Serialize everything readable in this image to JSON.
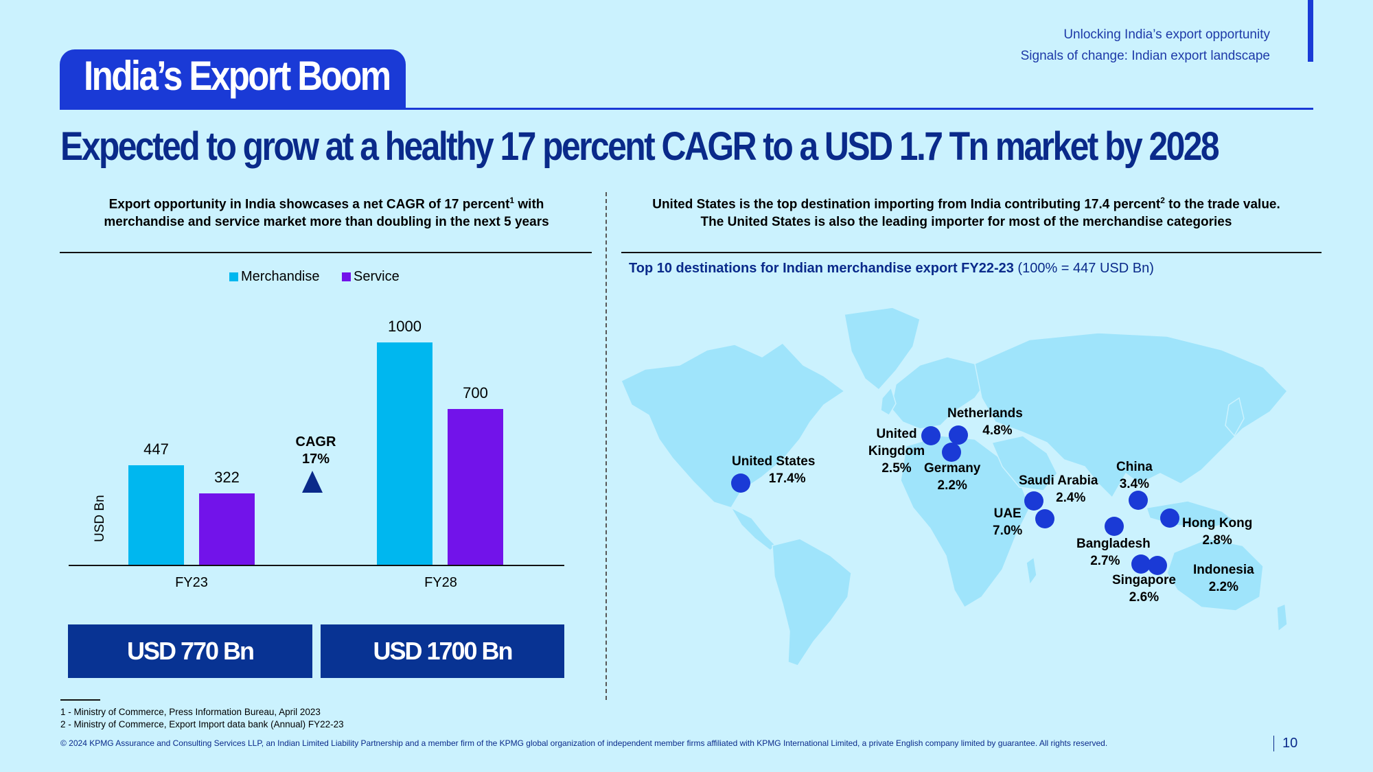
{
  "header": {
    "line1": "Unlocking India’s export opportunity",
    "line2": "Signals of change: Indian export landscape"
  },
  "title": "India’s Export Boom",
  "headline": "Expected to grow at a healthy 17 percent CAGR to a USD 1.7 Tn market by 2028",
  "left": {
    "subhead_a": "Export opportunity in India showcases a net CAGR of 17 percent",
    "subhead_a_sup": "1",
    "subhead_a_tail": " with",
    "subhead_b": "merchandise and service market more than doubling in the next 5 years",
    "cagr_label": "CAGR",
    "cagr_value": "17%",
    "totals": [
      "USD 770 Bn",
      "USD 1700 Bn"
    ]
  },
  "right": {
    "subhead_a": "United States is the top destination importing from India contributing 17.4 percent",
    "subhead_a_sup": "2",
    "subhead_a_tail": " to the trade value.",
    "subhead_b": "The United States is also the leading importer for most of the merchandise categories",
    "map_title_bold": "Top 10 destinations for Indian merchandise export FY22-23",
    "map_title_rest": " (100% = 447 USD Bn)",
    "destinations": [
      {
        "name": "United States",
        "share": "17.4%"
      },
      {
        "name": "United Kingdom",
        "share": "2.5%"
      },
      {
        "name": "Netherlands",
        "share": "4.8%"
      },
      {
        "name": "Germany",
        "share": "2.2%"
      },
      {
        "name": "Saudi Arabia",
        "share": "2.4%"
      },
      {
        "name": "UAE",
        "share": "7.0%"
      },
      {
        "name": "China",
        "share": "3.4%"
      },
      {
        "name": "Hong Kong",
        "share": "2.8%"
      },
      {
        "name": "Bangladesh",
        "share": "2.7%"
      },
      {
        "name": "Singapore",
        "share": "2.6%"
      },
      {
        "name": "Indonesia",
        "share": "2.2%"
      }
    ]
  },
  "chart_data": {
    "type": "bar",
    "categories": [
      "FY23",
      "FY28"
    ],
    "series": [
      {
        "name": "Merchandise",
        "values": [
          447,
          1000
        ],
        "color": "#00b7ef"
      },
      {
        "name": "Service",
        "values": [
          322,
          700
        ],
        "color": "#7213ea"
      }
    ],
    "ylabel": "USD Bn",
    "xlabel": "",
    "ylim": [
      0,
      1000
    ]
  },
  "footnotes": [
    "1 - Ministry of Commerce, Press Information Bureau, April 2023",
    "2 - Ministry of Commerce, Export Import data bank (Annual) FY22-23"
  ],
  "copyright": "© 2024 KPMG Assurance and Consulting Services LLP, an Indian Limited Liability Partnership and a member firm of the KPMG global organization of independent member firms affiliated with KPMG International Limited, a private English company limited by guarantee. All rights reserved.",
  "page_number": "10"
}
